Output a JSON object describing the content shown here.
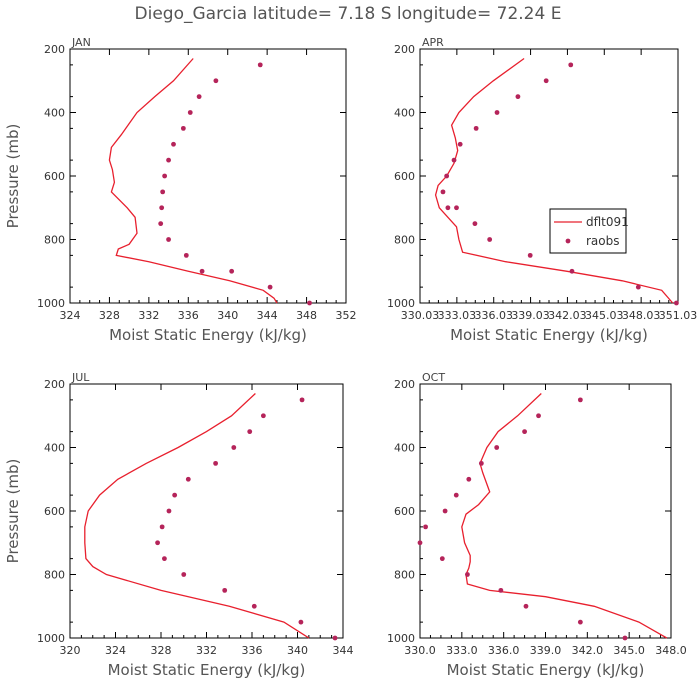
{
  "title": "Diego_Garcia  latitude= 7.18 S longitude= 72.24 E",
  "colors": {
    "series": "#e8202e",
    "points": "#b5245a",
    "axis": "#000000",
    "text": "#555555"
  },
  "chart_data": [
    {
      "type": "line",
      "panel_title": "JAN",
      "xlabel": "Moist Static Energy (kJ/kg)",
      "ylabel": "Pressure (mb)",
      "xlim": [
        324,
        352
      ],
      "ylim": [
        1000,
        200
      ],
      "xticks": [
        "324",
        "328",
        "332",
        "336",
        "340",
        "344",
        "348",
        "352"
      ],
      "yticks": [
        "200",
        "400",
        "600",
        "800",
        "1000"
      ],
      "series": [
        {
          "kind": "line",
          "x": [
            336.5,
            334.5,
            332.6,
            330.8,
            329.2,
            328.2,
            328.0,
            328.3,
            328.5,
            328.2,
            329.8,
            330.6,
            330.8,
            330.0,
            328.9,
            328.7,
            332.0,
            336.0,
            340.2,
            343.6,
            344.7,
            345.0
          ],
          "y": [
            230,
            300,
            350,
            400,
            470,
            510,
            550,
            580,
            620,
            650,
            700,
            730,
            780,
            815,
            830,
            850,
            870,
            900,
            930,
            960,
            985,
            1000
          ]
        },
        {
          "kind": "scatter",
          "x": [
            343.3,
            338.8,
            337.1,
            336.2,
            335.5,
            334.5,
            334.0,
            333.6,
            333.4,
            333.3,
            333.2,
            334.0,
            335.8,
            337.4,
            340.4,
            344.3,
            348.3
          ],
          "y": [
            250,
            300,
            350,
            400,
            450,
            500,
            550,
            600,
            650,
            700,
            750,
            800,
            850,
            900,
            900,
            950,
            1000
          ]
        }
      ]
    },
    {
      "type": "line",
      "panel_title": "APR",
      "xlabel": "Moist Static Energy (kJ/kg)",
      "ylabel": "",
      "xlim": [
        330.03,
        351.03
      ],
      "ylim": [
        1000,
        200
      ],
      "xticks": [
        "330.03",
        "333.03",
        "336.03",
        "339.03",
        "342.03",
        "345.03",
        "348.03",
        "351.03"
      ],
      "yticks": [
        "200",
        "400",
        "600",
        "800",
        "1000"
      ],
      "series": [
        {
          "name": "dflt091",
          "kind": "line",
          "x": [
            338.5,
            336.0,
            334.4,
            333.2,
            332.6,
            332.9,
            333.1,
            332.8,
            332.2,
            331.5,
            331.3,
            331.6,
            332.3,
            333.0,
            333.2,
            333.5,
            337.0,
            342.0,
            346.5,
            349.7,
            350.6
          ],
          "y": [
            230,
            300,
            350,
            400,
            440,
            480,
            520,
            560,
            600,
            630,
            660,
            700,
            730,
            760,
            800,
            840,
            870,
            900,
            930,
            960,
            1000
          ]
        },
        {
          "name": "raobs",
          "kind": "scatter",
          "x": [
            342.3,
            340.3,
            338.0,
            336.3,
            334.6,
            333.3,
            332.8,
            332.2,
            331.9,
            332.3,
            333.0,
            334.5,
            335.7,
            339.0,
            342.4,
            347.8,
            350.9
          ],
          "y": [
            250,
            300,
            350,
            400,
            450,
            500,
            550,
            600,
            650,
            700,
            700,
            750,
            800,
            850,
            900,
            950,
            1000
          ]
        }
      ],
      "legend": {
        "position": "right"
      }
    },
    {
      "type": "line",
      "panel_title": "JUL",
      "xlabel": "Moist Static Energy (kJ/kg)",
      "ylabel": "Pressure (mb)",
      "xlim": [
        320,
        344
      ],
      "ylim": [
        1000,
        200
      ],
      "xticks": [
        "320",
        "324",
        "328",
        "332",
        "336",
        "340",
        "344"
      ],
      "yticks": [
        "200",
        "400",
        "600",
        "800",
        "1000"
      ],
      "series": [
        {
          "kind": "line",
          "x": [
            336.3,
            334.2,
            332.0,
            329.5,
            326.7,
            324.2,
            322.6,
            321.6,
            321.3,
            321.3,
            321.4,
            322.0,
            323.2,
            328.0,
            334.0,
            338.8,
            341.0
          ],
          "y": [
            230,
            300,
            350,
            400,
            450,
            500,
            550,
            600,
            650,
            700,
            750,
            775,
            800,
            850,
            900,
            950,
            1000
          ]
        },
        {
          "kind": "scatter",
          "x": [
            340.4,
            337.0,
            335.8,
            334.4,
            332.8,
            330.4,
            329.2,
            328.7,
            328.1,
            327.7,
            328.3,
            330.0,
            333.6,
            336.2,
            340.3,
            343.3
          ],
          "y": [
            250,
            300,
            350,
            400,
            450,
            500,
            550,
            600,
            650,
            700,
            750,
            800,
            850,
            900,
            950,
            1000
          ]
        }
      ]
    },
    {
      "type": "line",
      "panel_title": "OCT",
      "xlabel": "Moist Static Energy (kJ/kg)",
      "ylabel": "",
      "xlim": [
        330.0,
        348.0
      ],
      "ylim": [
        1000,
        200
      ],
      "xticks": [
        "330.0",
        "333.0",
        "336.0",
        "339.0",
        "342.0",
        "345.0",
        "348.0"
      ],
      "yticks": [
        "200",
        "400",
        "600",
        "800",
        "1000"
      ],
      "series": [
        {
          "kind": "line",
          "x": [
            338.7,
            337.0,
            335.6,
            334.8,
            334.3,
            334.5,
            335.0,
            334.2,
            333.3,
            333.0,
            333.2,
            333.6,
            333.6,
            333.5,
            333.3,
            333.4,
            335.0,
            339.0,
            342.5,
            345.7,
            347.7
          ],
          "y": [
            230,
            300,
            350,
            400,
            450,
            480,
            540,
            580,
            610,
            650,
            700,
            740,
            760,
            780,
            800,
            830,
            850,
            870,
            900,
            950,
            1000
          ]
        },
        {
          "kind": "scatter",
          "x": [
            341.5,
            338.5,
            337.5,
            335.5,
            334.4,
            333.5,
            332.6,
            331.8,
            330.4,
            330.0,
            331.6,
            333.4,
            335.8,
            337.6,
            341.5,
            344.7
          ],
          "y": [
            250,
            300,
            350,
            400,
            450,
            500,
            550,
            600,
            650,
            700,
            750,
            800,
            850,
            900,
            950,
            1000
          ]
        }
      ]
    }
  ]
}
